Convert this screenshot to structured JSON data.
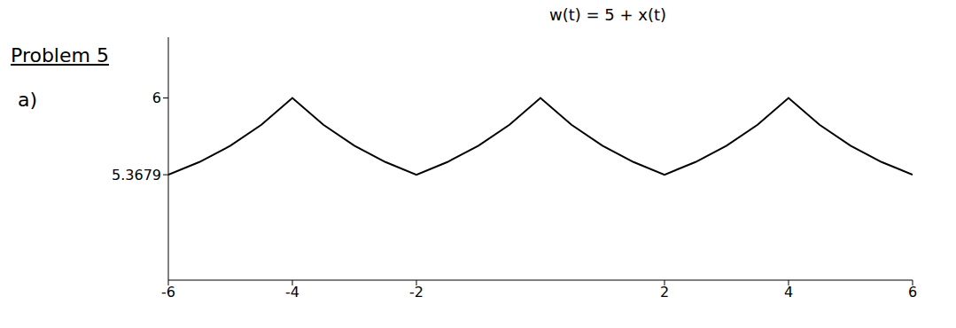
{
  "chart_data": {
    "type": "line",
    "title": "Problem 5",
    "subtitle": "a)",
    "annotation": "w(t) = 5 + x(t)",
    "x": [
      -6,
      -5.5,
      -5,
      -4.5,
      -4,
      -3.5,
      -3,
      -2.5,
      -2,
      -1.5,
      -1,
      -0.5,
      0,
      0.5,
      1,
      1.5,
      2,
      2.5,
      3,
      3.5,
      4,
      4.5,
      5,
      5.5,
      6
    ],
    "values": [
      5.3679,
      5.4724,
      5.6065,
      5.7788,
      6,
      5.7788,
      5.6065,
      5.4724,
      5.3679,
      5.4724,
      5.6065,
      5.7788,
      6,
      5.7788,
      5.6065,
      5.4724,
      5.3679,
      5.4724,
      5.6065,
      5.7788,
      6,
      5.7788,
      5.6065,
      5.4724,
      5.3679
    ],
    "color": "#000000",
    "xlim": [
      -6,
      6
    ],
    "xticks": [
      -6,
      -4,
      -2,
      2,
      4,
      6
    ],
    "ylim": [
      4.5,
      6.5
    ],
    "yticks": [
      5.3679,
      6
    ],
    "grid": false,
    "marker": "none",
    "line_style": "solid"
  }
}
